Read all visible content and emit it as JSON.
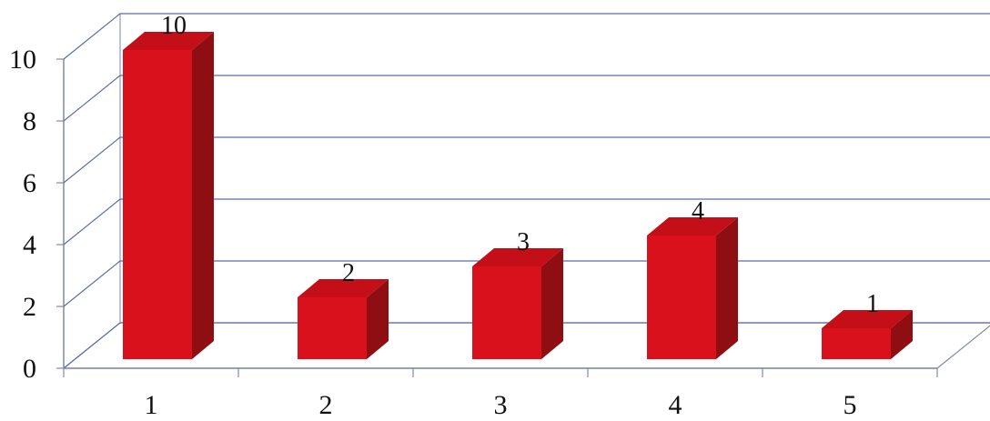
{
  "chart_data": {
    "type": "bar",
    "style": "3d-column",
    "title": "",
    "xlabel": "",
    "ylabel": "",
    "categories": [
      "1",
      "2",
      "3",
      "4",
      "5"
    ],
    "series": [
      {
        "values": [
          10,
          2,
          3,
          4,
          1
        ],
        "color": "#d9111c"
      }
    ],
    "data_labels": [
      "10",
      "2",
      "3",
      "4",
      "1"
    ],
    "y_ticks": [
      "0",
      "2",
      "4",
      "6",
      "8",
      "10"
    ],
    "ylim": [
      0,
      10
    ],
    "grid": true,
    "legend": "none"
  },
  "colors": {
    "bar_front": "#d9111c",
    "bar_side": "#8f0e12",
    "bar_top": "#c40f18",
    "gridline": "#5a6fa8",
    "axis": "#7f8aa8"
  }
}
